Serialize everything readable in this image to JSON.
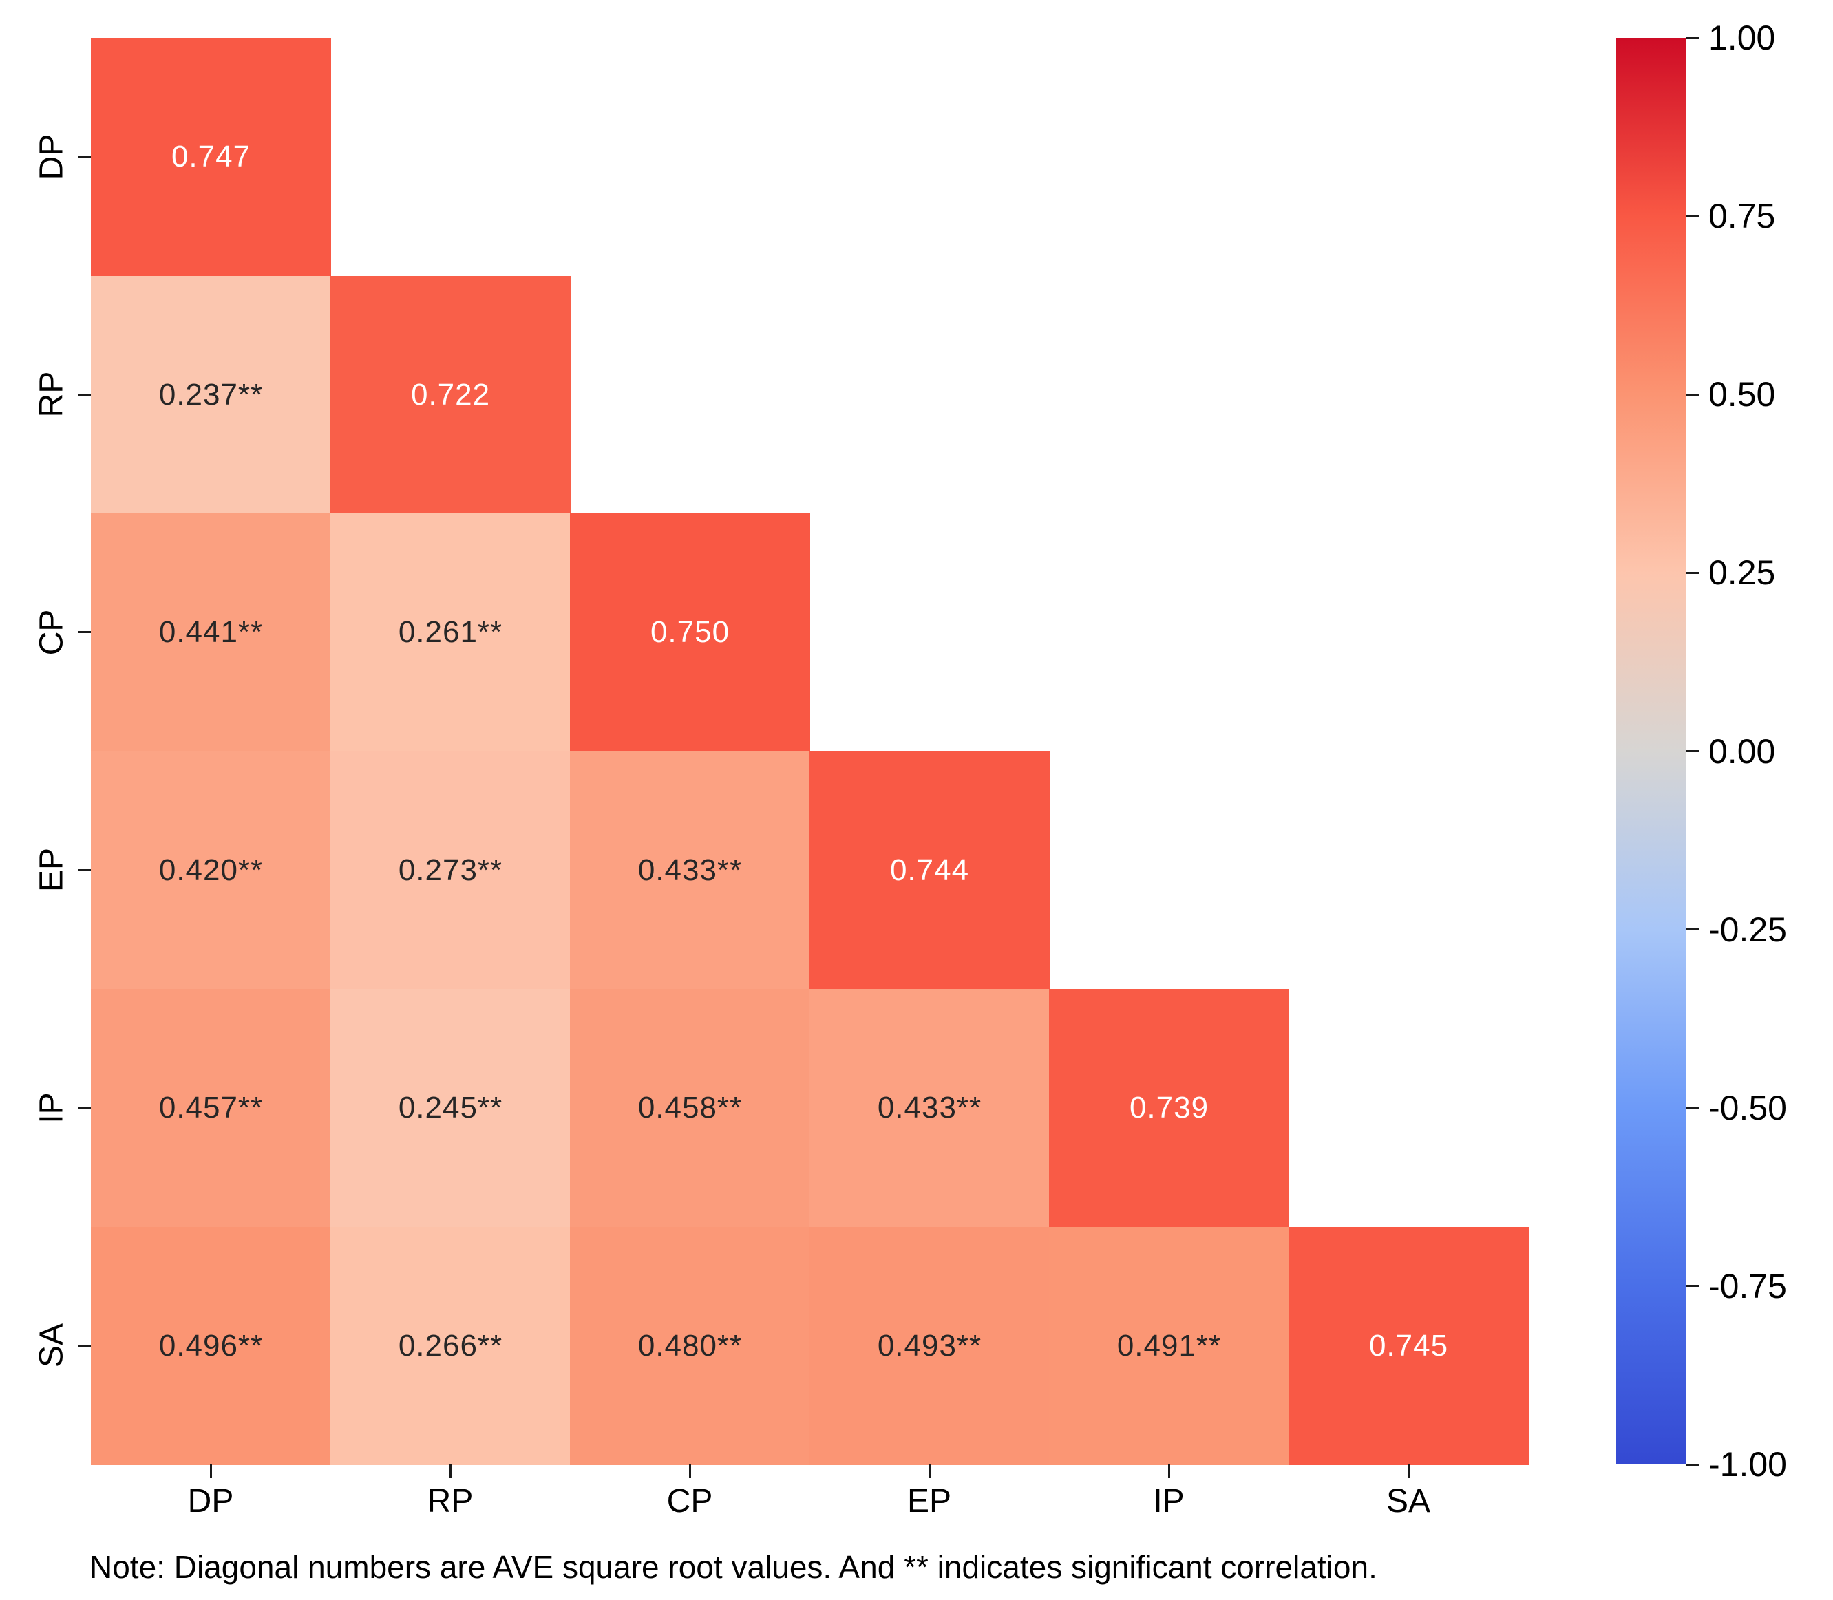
{
  "figure": {
    "background": "#ffffff"
  },
  "chart_data": {
    "type": "heatmap",
    "title": "",
    "xlabel": "",
    "ylabel": "",
    "x_categories": [
      "DP",
      "RP",
      "CP",
      "EP",
      "IP",
      "SA"
    ],
    "y_categories": [
      "DP",
      "RP",
      "CP",
      "EP",
      "IP",
      "SA"
    ],
    "values": [
      [
        0.747,
        null,
        null,
        null,
        null,
        null
      ],
      [
        0.237,
        0.722,
        null,
        null,
        null,
        null
      ],
      [
        0.441,
        0.261,
        0.75,
        null,
        null,
        null
      ],
      [
        0.42,
        0.273,
        0.433,
        0.744,
        null,
        null
      ],
      [
        0.457,
        0.245,
        0.458,
        0.433,
        0.739,
        null
      ],
      [
        0.496,
        0.266,
        0.48,
        0.493,
        0.491,
        0.745
      ]
    ],
    "labels": [
      [
        "0.747",
        null,
        null,
        null,
        null,
        null
      ],
      [
        "0.237**",
        "0.722",
        null,
        null,
        null,
        null
      ],
      [
        "0.441**",
        "0.261**",
        "0.750",
        null,
        null,
        null
      ],
      [
        "0.420**",
        "0.273**",
        "0.433**",
        "0.744",
        null,
        null
      ],
      [
        "0.457**",
        "0.245**",
        "0.458**",
        "0.433**",
        "0.739",
        null
      ],
      [
        "0.496**",
        "0.266**",
        "0.480**",
        "0.493**",
        "0.491**",
        "0.745"
      ]
    ],
    "colorbar": {
      "min": -1.0,
      "max": 1.0,
      "tick_labels": [
        "1.00",
        "0.75",
        "0.50",
        "0.25",
        "0.00",
        "-0.25",
        "-0.50",
        "-0.75",
        "-1.00"
      ],
      "tick_values": [
        1.0,
        0.75,
        0.5,
        0.25,
        0.0,
        -0.25,
        -0.5,
        -0.75,
        -1.0
      ]
    },
    "colormap_stops": [
      [
        -1.0,
        "#3449D2"
      ],
      [
        -0.75,
        "#4A6FE8"
      ],
      [
        -0.5,
        "#6D9AF8"
      ],
      [
        -0.25,
        "#A8C6F8"
      ],
      [
        0.0,
        "#D7D5D3"
      ],
      [
        0.25,
        "#FDC5AD"
      ],
      [
        0.5,
        "#FB9472"
      ],
      [
        0.75,
        "#F95844"
      ],
      [
        1.0,
        "#CE0C26"
      ]
    ],
    "colors": {
      "annot_diagonal": "#ffffff",
      "annot_offdiagonal": "#262626",
      "axis_text": "#000000",
      "tick_mark": "#1a1a1a"
    },
    "note": "Note: Diagonal numbers are AVE square root values. And ** indicates significant correlation."
  }
}
